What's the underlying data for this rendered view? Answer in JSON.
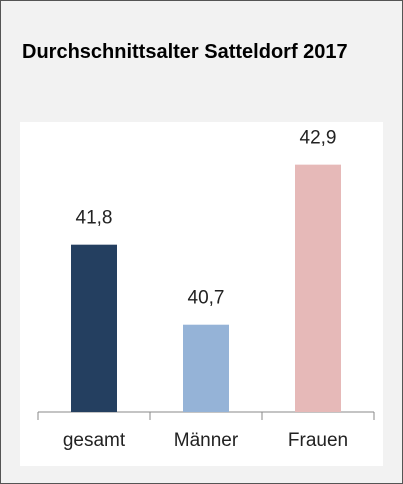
{
  "chart_data": {
    "type": "bar",
    "title": "Durchschnittsalter Satteldorf 2017",
    "categories": [
      "gesamt",
      "Männer",
      "Frauen"
    ],
    "values": [
      41.8,
      40.7,
      42.9
    ],
    "value_labels": [
      "41,8",
      "40,7",
      "42,9"
    ],
    "colors": [
      "#243f60",
      "#95b3d7",
      "#e6b9b8"
    ],
    "ylim": [
      39.5,
      43.5
    ]
  }
}
